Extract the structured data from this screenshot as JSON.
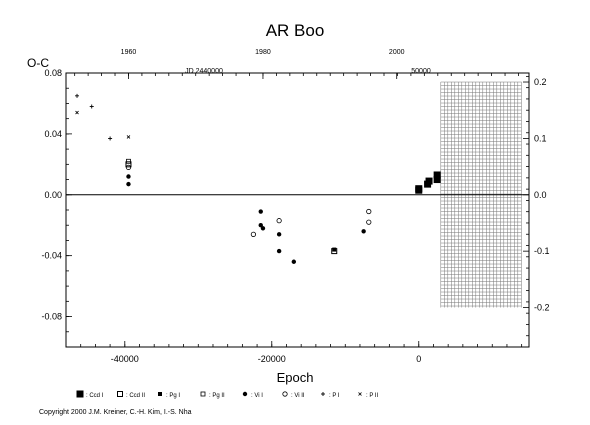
{
  "chart_data": {
    "type": "scatter",
    "title": "AR Boo",
    "ylabel": "O-C",
    "xlabel": "Epoch",
    "top_axis_label_jd": "JD 2440000",
    "top_axis_label_50000": "50000",
    "copyright": "Copyright 2000 J.M. Kreiner, C.-H. Kim, I.-S. Nha",
    "xlim": [
      -48000,
      15000
    ],
    "ylim": [
      -0.1,
      0.08
    ],
    "x_ticks": [
      -40000,
      -20000,
      0
    ],
    "x_tick_labels": [
      "-40000",
      "-20000",
      "0"
    ],
    "y_left_ticks": [
      -0.08,
      -0.04,
      0.0,
      0.04,
      0.08
    ],
    "y_left_tick_labels": [
      "-0.08",
      "-0.04",
      "0.00",
      "0.04",
      "0.08"
    ],
    "y_right_ticks": [
      -0.2,
      -0.1,
      0.0,
      0.1,
      0.2
    ],
    "y_right_tick_labels": [
      "-0.2",
      "-0.1",
      "0.0",
      "0.1",
      "0.2"
    ],
    "y_right_scale_factor": 2.7,
    "top_ticks": [
      -39500,
      -21200,
      -3000
    ],
    "top_tick_labels": [
      "1960",
      "1980",
      "2000"
    ],
    "prediction_band_x": [
      3000,
      14000
    ],
    "prediction_band_y": [
      -0.2,
      0.2
    ],
    "series": [
      {
        "name": ": Ccd I",
        "marker": "filled-square",
        "points": [
          [
            0,
            0.004
          ],
          [
            0,
            0.003
          ],
          [
            1200,
            0.007
          ],
          [
            1400,
            0.009
          ],
          [
            2500,
            0.01
          ],
          [
            2500,
            0.013
          ]
        ]
      },
      {
        "name": ": Ccd II",
        "marker": "open-square",
        "points": [
          [
            -39500,
            0.02
          ],
          [
            -11500,
            -0.037
          ]
        ]
      },
      {
        "name": ": Pg I",
        "marker": "filled-small-square",
        "points": [
          [
            -11500,
            -0.036
          ]
        ]
      },
      {
        "name": ": Pg II",
        "marker": "open-small-square",
        "points": [
          [
            -39500,
            0.022
          ]
        ]
      },
      {
        "name": ": Vi I",
        "marker": "filled-circle",
        "points": [
          [
            -21500,
            -0.011
          ],
          [
            -21500,
            -0.02
          ],
          [
            -21200,
            -0.022
          ],
          [
            -19000,
            -0.026
          ],
          [
            -19000,
            -0.037
          ],
          [
            -17000,
            -0.044
          ],
          [
            -7500,
            -0.024
          ],
          [
            -39500,
            0.012
          ],
          [
            -39500,
            0.007
          ]
        ]
      },
      {
        "name": ": Vi II",
        "marker": "open-circle",
        "points": [
          [
            -19000,
            -0.017
          ],
          [
            -22500,
            -0.026
          ],
          [
            -6800,
            -0.011
          ],
          [
            -6800,
            -0.018
          ],
          [
            -39500,
            0.018
          ]
        ]
      },
      {
        "name": ": P I",
        "marker": "plus",
        "points": [
          [
            -46500,
            0.065
          ],
          [
            -44500,
            0.058
          ],
          [
            -42000,
            0.037
          ]
        ]
      },
      {
        "name": ": P II",
        "marker": "cross",
        "points": [
          [
            -46500,
            0.054
          ],
          [
            -39500,
            0.038
          ]
        ]
      }
    ]
  }
}
